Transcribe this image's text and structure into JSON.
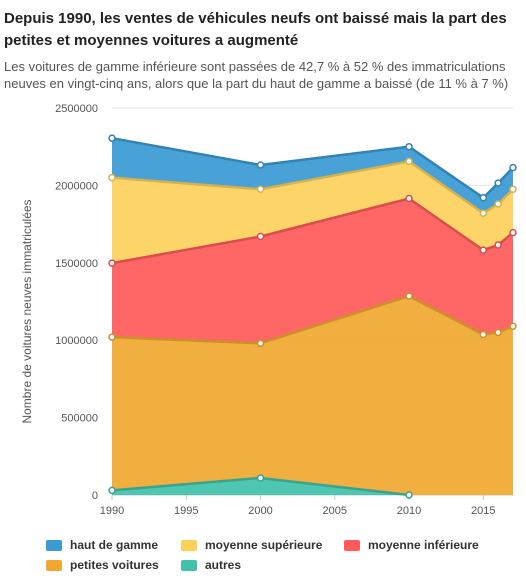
{
  "header": {
    "title": "Depuis 1990, les ventes de véhicules neufs ont baissé mais la part des petites et moyennes voitures a augmenté",
    "subtitle": "Les voitures de gamme inférieure sont passées de 42,7 % à 52 % des immatriculations neuves en vingt-cinq ans, alors que la part du haut de gamme a baissé (de 11 % à 7 %)"
  },
  "chart_data": {
    "type": "area",
    "stacked": true,
    "x": [
      1990,
      2000,
      2010,
      2015,
      2016,
      2017
    ],
    "series": [
      {
        "name": "autres",
        "color": "#3fc1aa",
        "values": [
          30000,
          110000,
          0,
          null,
          null,
          null
        ]
      },
      {
        "name": "petites voitures",
        "color": "#f0a830",
        "values": [
          990000,
          870000,
          1285000,
          1037000,
          1050000,
          1090000
        ]
      },
      {
        "name": "moyenne inférieure",
        "color": "#ff5a5a",
        "values": [
          478000,
          690000,
          630000,
          545000,
          565000,
          605000
        ]
      },
      {
        "name": "moyenne supérieure",
        "color": "#fdd05a",
        "values": [
          552000,
          305000,
          240000,
          238000,
          265000,
          280000
        ]
      },
      {
        "name": "haut de gamme",
        "color": "#3a9ad4",
        "values": [
          255000,
          157000,
          95000,
          100000,
          135000,
          140000
        ]
      }
    ],
    "xlabel": "",
    "ylabel": "Nombre de voitures neuves immatriculées",
    "xlim": [
      1990,
      2017
    ],
    "ylim": [
      0,
      2500000
    ],
    "x_ticks": [
      "1990",
      "1995",
      "2000",
      "2005",
      "2010",
      "2015"
    ],
    "y_ticks": [
      "0",
      "500000",
      "1000000",
      "1500000",
      "2000000",
      "2500000"
    ],
    "grid": true,
    "legend": {
      "placement": "bottom",
      "order": [
        "haut de gamme",
        "moyenne supérieure",
        "moyenne inférieure",
        "petites voitures",
        "autres"
      ]
    }
  }
}
